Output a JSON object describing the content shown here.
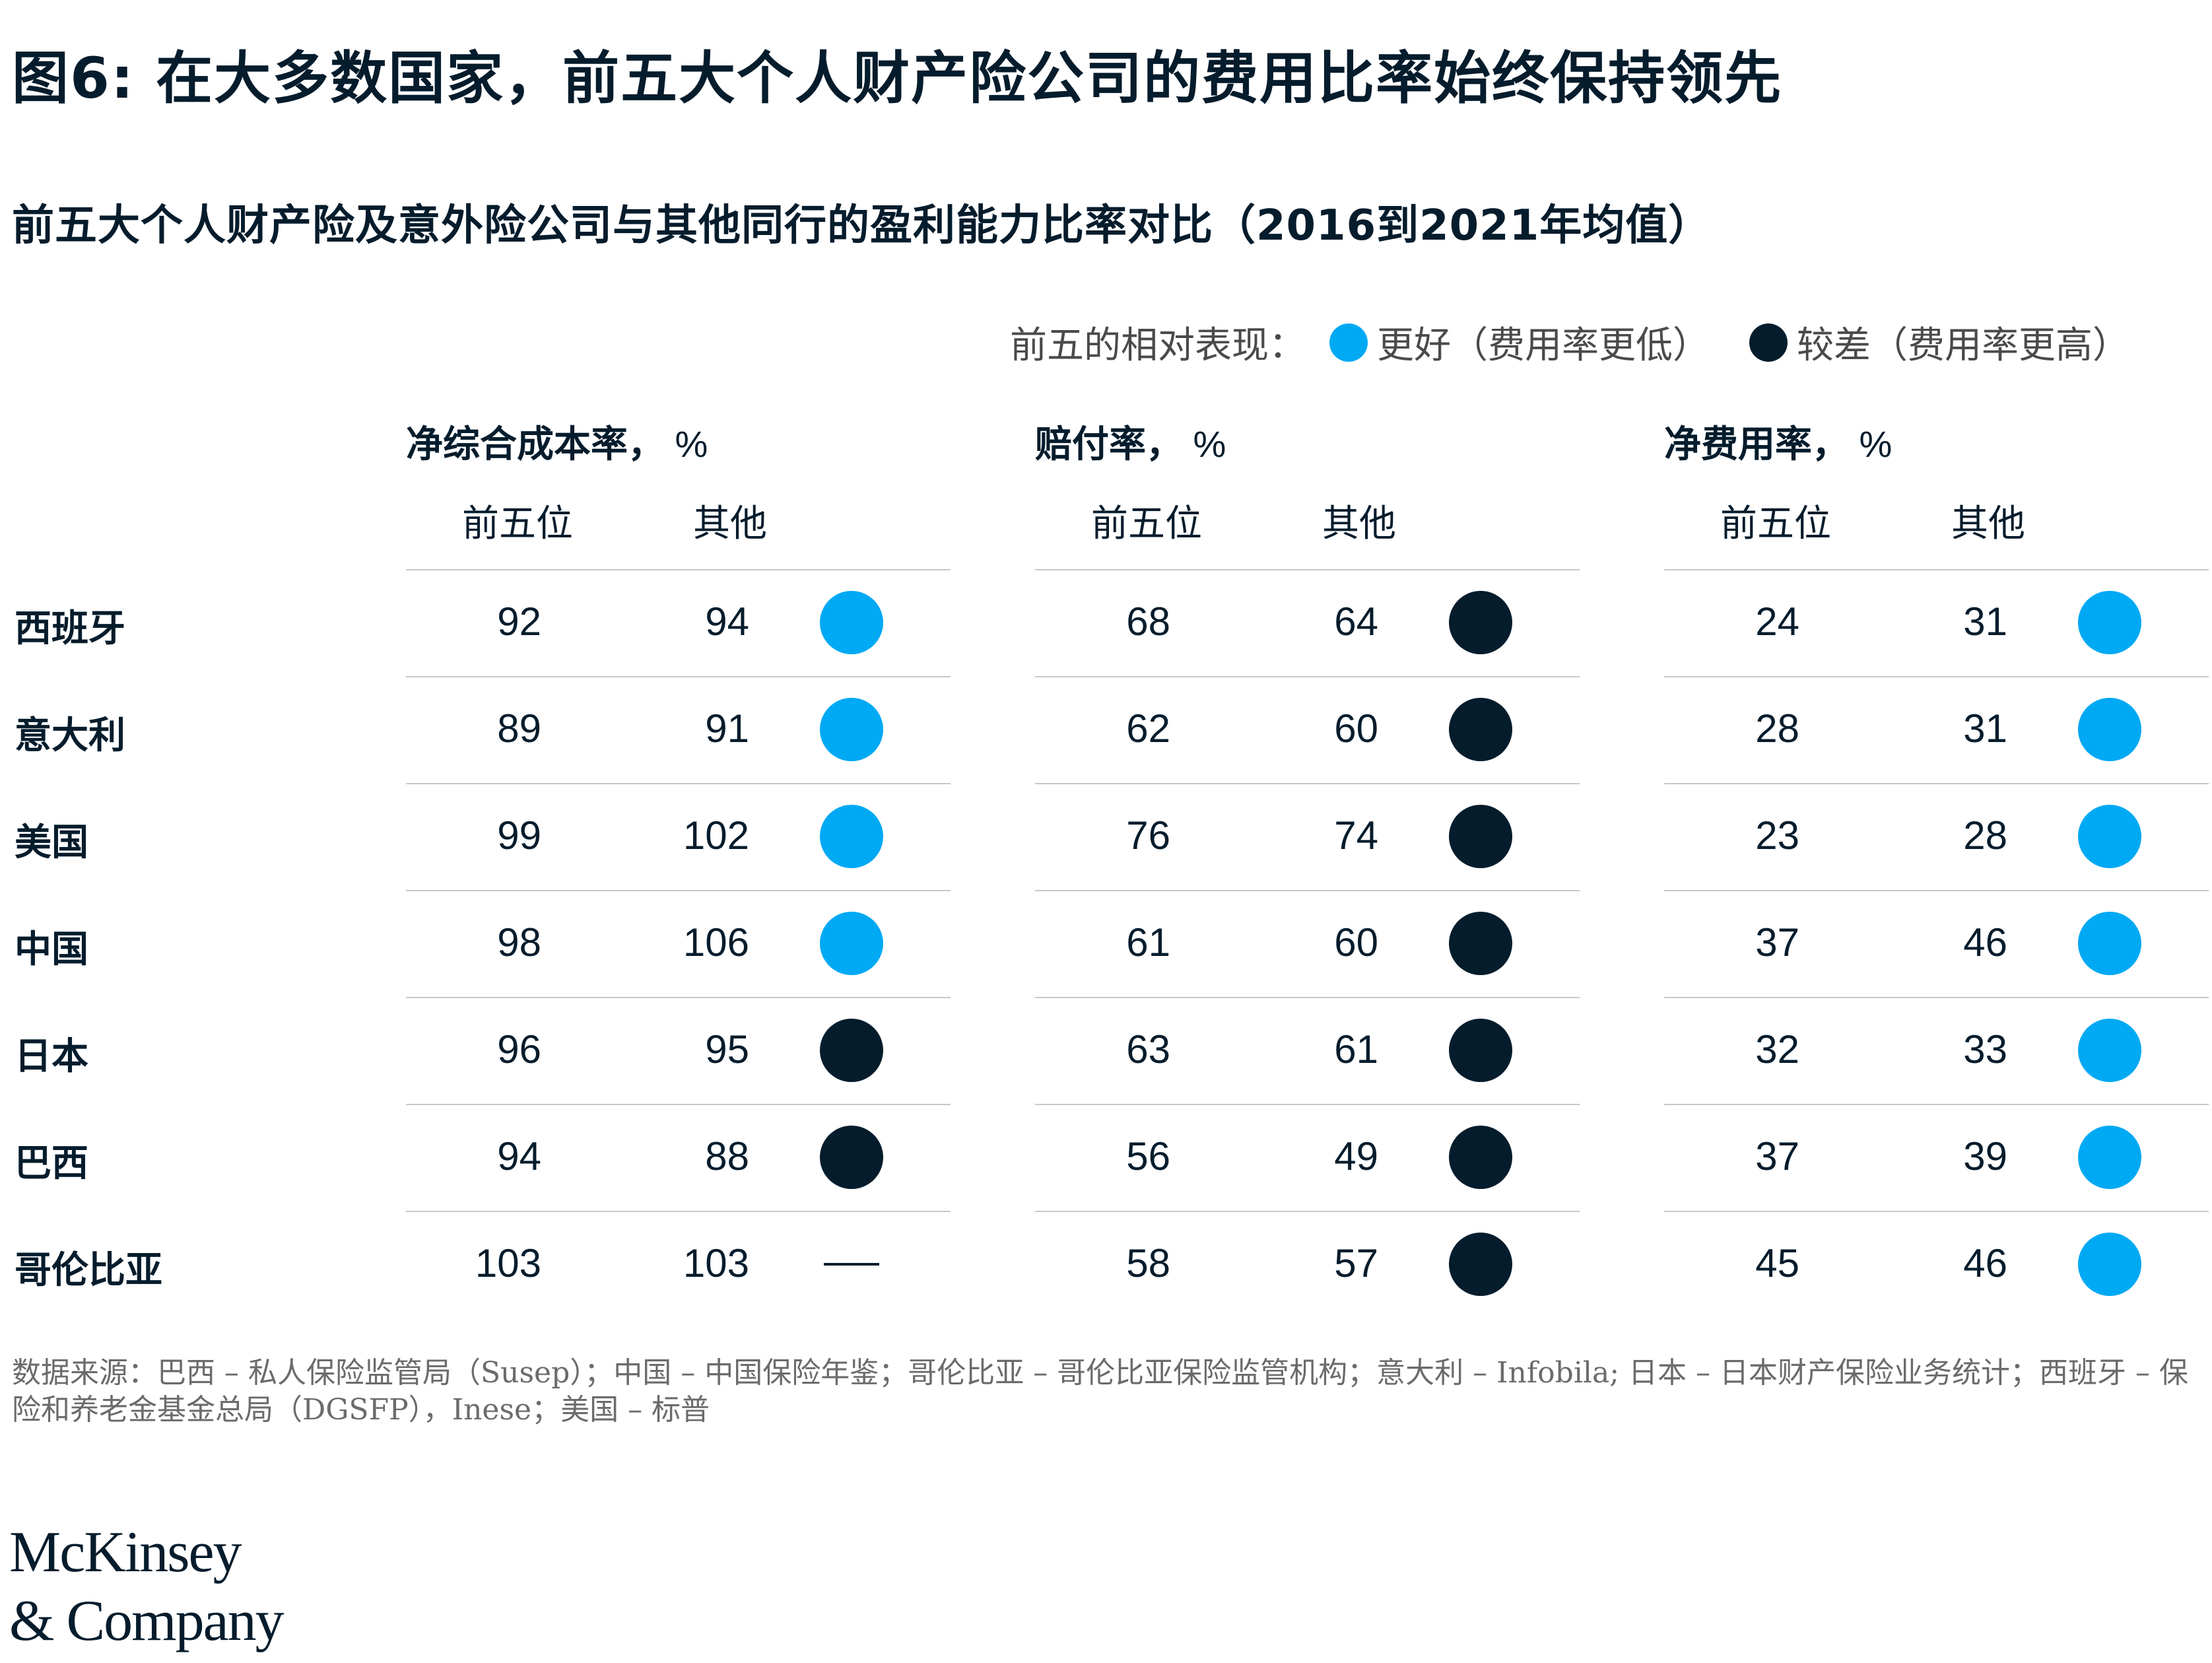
{
  "title": "图6: 在大多数国家，前五大个人财产险公司的费用比率始终保持领先",
  "subtitle": "前五大个人财产险及意外险公司与其他同行的盈利能力比率对比（2016到2021年均值）",
  "legend": {
    "label": "前五的相对表现：",
    "better": "更好（费用率更低）",
    "worse": "较差（费用率更高）",
    "better_color": "#00a9f4",
    "worse_color": "#051c2c"
  },
  "panels": [
    {
      "title": "净综合成本率，",
      "unit": "%",
      "col_top5": "前五位",
      "col_other": "其他"
    },
    {
      "title": "赔付率，",
      "unit": "%",
      "col_top5": "前五位",
      "col_other": "其他"
    },
    {
      "title": "净费用率，",
      "unit": "%",
      "col_top5": "前五位",
      "col_other": "其他"
    }
  ],
  "chart_data": {
    "type": "table",
    "countries": [
      "西班牙",
      "意大利",
      "美国",
      "中国",
      "日本",
      "巴西",
      "哥伦比亚"
    ],
    "metrics": [
      {
        "name": "净综合成本率",
        "top5": [
          92,
          89,
          99,
          98,
          96,
          94,
          103
        ],
        "other": [
          94,
          91,
          102,
          106,
          95,
          88,
          103
        ],
        "performance": [
          "better",
          "better",
          "better",
          "better",
          "worse",
          "worse",
          "none"
        ]
      },
      {
        "name": "赔付率",
        "top5": [
          68,
          62,
          76,
          61,
          63,
          56,
          58
        ],
        "other": [
          64,
          60,
          74,
          60,
          61,
          49,
          57
        ],
        "performance": [
          "worse",
          "worse",
          "worse",
          "worse",
          "worse",
          "worse",
          "worse"
        ]
      },
      {
        "name": "净费用率",
        "top5": [
          24,
          28,
          23,
          37,
          32,
          37,
          45
        ],
        "other": [
          31,
          31,
          28,
          46,
          33,
          39,
          46
        ],
        "performance": [
          "better",
          "better",
          "better",
          "better",
          "better",
          "better",
          "better"
        ]
      }
    ],
    "colors": {
      "better": "#00a9f4",
      "worse": "#051c2c"
    }
  },
  "source": "数据来源：巴西 – 私人保险监管局（Susep）；中国 – 中国保险年鉴；哥伦比亚 – 哥伦比亚保险监管机构；意大利 – Infobila; 日本 – 日本财产保险业务统计；西班牙 – 保险和养老金基金总局（DGSFP），Inese；美国 – 标普",
  "logo": {
    "line1": "McKinsey",
    "line2": "& Company"
  }
}
